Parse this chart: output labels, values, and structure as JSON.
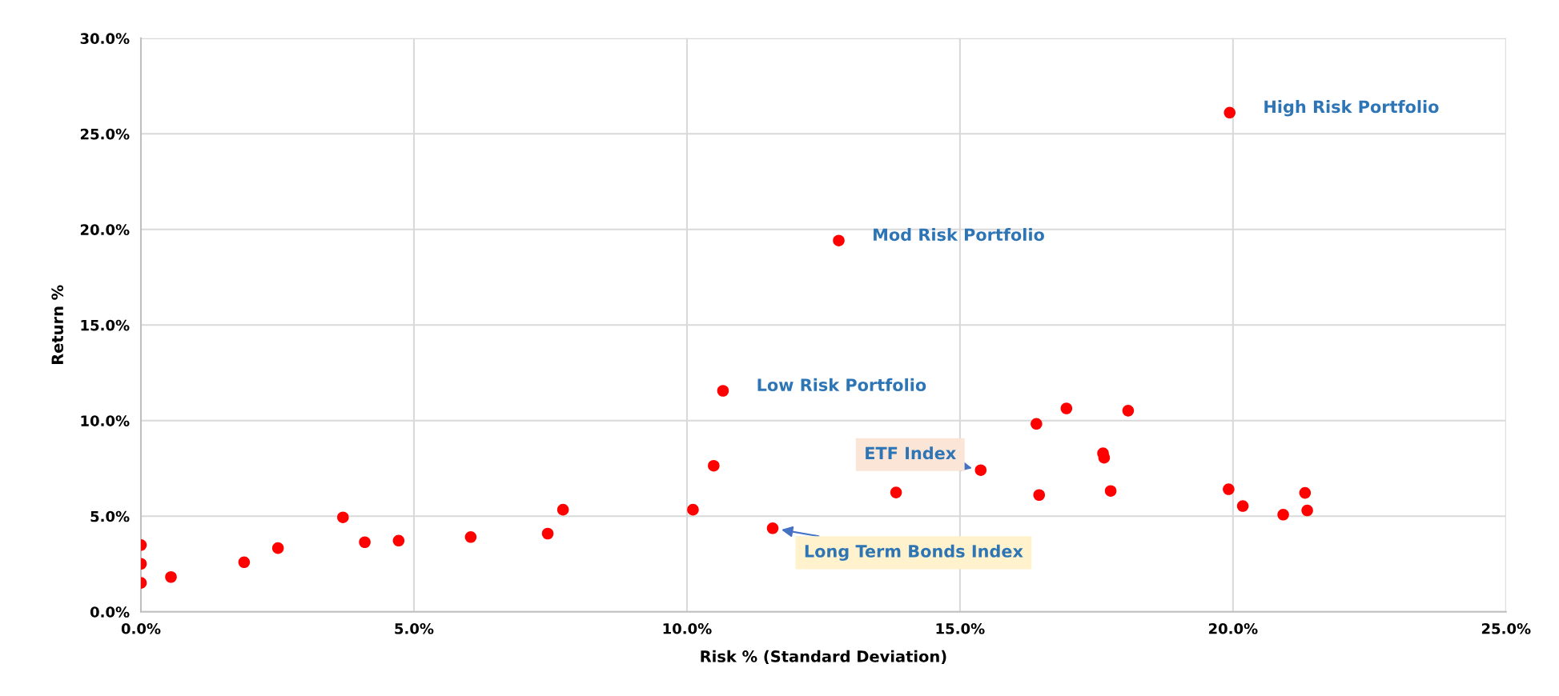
{
  "chart_data": {
    "type": "scatter",
    "xlabel": "Risk % (Standard Deviation)",
    "ylabel": "Return %",
    "series": [
      {
        "color": "#ff0000",
        "x": [
          0,
          0,
          0,
          0.55,
          1.89,
          2.51,
          3.7,
          4.1,
          4.72,
          6.04,
          7.45,
          7.73,
          10.66,
          10.49,
          10.11,
          11.57,
          13.83,
          15.38,
          16.45,
          16.4,
          16.95,
          17.62,
          17.64,
          17.76,
          18.08,
          19.92,
          20.18,
          20.92,
          21.32,
          21.36,
          12.78,
          19.94
        ],
        "values": [
          3.49,
          2.51,
          1.51,
          1.82,
          2.59,
          3.33,
          4.94,
          3.64,
          3.72,
          3.91,
          4.09,
          5.34,
          11.56,
          7.64,
          5.34,
          4.37,
          6.24,
          7.41,
          6.11,
          9.83,
          10.64,
          8.29,
          8.06,
          6.32,
          10.52,
          6.41,
          5.53,
          5.08,
          6.22,
          5.3,
          19.42,
          26.11
        ]
      }
    ],
    "xlim": [
      0,
      25
    ],
    "ylim": [
      0,
      30
    ],
    "xticks": [
      {
        "value": 0,
        "label": "0.0%"
      },
      {
        "value": 5,
        "label": "5.0%"
      },
      {
        "value": 10,
        "label": "10.0%"
      },
      {
        "value": 15,
        "label": "15.0%"
      },
      {
        "value": 20,
        "label": "20.0%"
      },
      {
        "value": 25,
        "label": "25.0%"
      }
    ],
    "yticks": [
      {
        "value": 0,
        "label": "0.0%"
      },
      {
        "value": 5,
        "label": "5.0%"
      },
      {
        "value": 10,
        "label": "10.0%"
      },
      {
        "value": 15,
        "label": "15.0%"
      },
      {
        "value": 20,
        "label": "20.0%"
      },
      {
        "value": 25,
        "label": "25.0%"
      },
      {
        "value": 30,
        "label": "30.0%"
      }
    ],
    "grid": true,
    "marker": "circle",
    "annotations": [
      {
        "text": "High Risk Portfolio",
        "x": 19.94,
        "y": 26.11
      },
      {
        "text": "Mod Risk Portfolio",
        "x": 12.78,
        "y": 19.42
      },
      {
        "text": "Low Risk Portfolio",
        "x": 10.66,
        "y": 11.56
      },
      {
        "text": "ETF Index",
        "x": 15.38,
        "y": 7.41
      },
      {
        "text": "Long Term Bonds Index",
        "x": 11.57,
        "y": 4.37
      }
    ]
  }
}
